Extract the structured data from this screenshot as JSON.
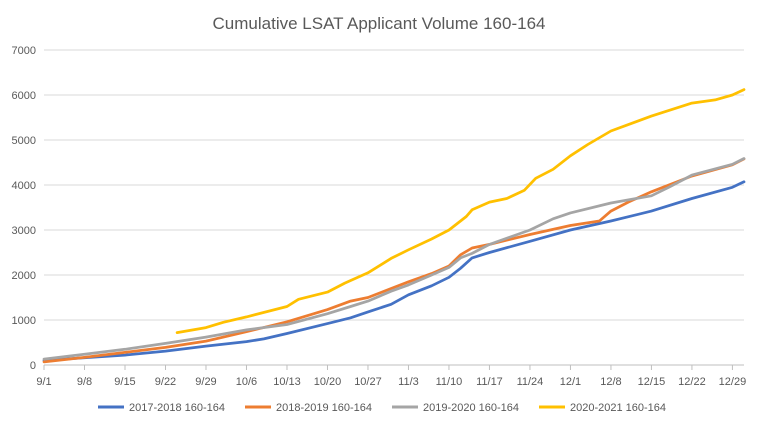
{
  "chart_data": {
    "type": "line",
    "title": "Cumulative LSAT Applicant Volume 160-164",
    "xlabel": "",
    "ylabel": "",
    "x_unit": "days since 9/1",
    "xlim": [
      0,
      121
    ],
    "ylim": [
      0,
      7000
    ],
    "yticks": [
      0,
      1000,
      2000,
      3000,
      4000,
      5000,
      6000,
      7000
    ],
    "ytick_labels": [
      "0",
      "1000",
      "2000",
      "3000",
      "4000",
      "5000",
      "6000",
      "7000"
    ],
    "xticks": [
      0,
      7,
      14,
      21,
      28,
      35,
      42,
      49,
      56,
      63,
      70,
      77,
      84,
      91,
      98,
      105,
      112,
      119
    ],
    "xtick_labels": [
      "9/1",
      "9/8",
      "9/15",
      "9/22",
      "9/29",
      "10/6",
      "10/13",
      "10/20",
      "10/27",
      "11/3",
      "11/10",
      "11/17",
      "11/24",
      "12/1",
      "12/8",
      "12/15",
      "12/22",
      "12/29"
    ],
    "grid": true,
    "legend_position": "bottom",
    "series": [
      {
        "name": "2017-2018 160-164",
        "color": "#4472C4",
        "points": [
          [
            0,
            100
          ],
          [
            7,
            160
          ],
          [
            14,
            220
          ],
          [
            21,
            310
          ],
          [
            28,
            420
          ],
          [
            35,
            520
          ],
          [
            38,
            580
          ],
          [
            42,
            700
          ],
          [
            49,
            920
          ],
          [
            53,
            1050
          ],
          [
            56,
            1180
          ],
          [
            60,
            1350
          ],
          [
            63,
            1560
          ],
          [
            67,
            1760
          ],
          [
            70,
            1950
          ],
          [
            72,
            2150
          ],
          [
            74,
            2380
          ],
          [
            77,
            2500
          ],
          [
            84,
            2750
          ],
          [
            91,
            3000
          ],
          [
            98,
            3200
          ],
          [
            105,
            3420
          ],
          [
            112,
            3700
          ],
          [
            119,
            3950
          ],
          [
            121,
            4070
          ]
        ]
      },
      {
        "name": "2018-2019 160-164",
        "color": "#ED7D31",
        "points": [
          [
            0,
            70
          ],
          [
            7,
            170
          ],
          [
            14,
            280
          ],
          [
            21,
            390
          ],
          [
            28,
            530
          ],
          [
            35,
            740
          ],
          [
            42,
            960
          ],
          [
            49,
            1230
          ],
          [
            53,
            1420
          ],
          [
            56,
            1500
          ],
          [
            60,
            1700
          ],
          [
            63,
            1850
          ],
          [
            67,
            2030
          ],
          [
            70,
            2200
          ],
          [
            72,
            2450
          ],
          [
            74,
            2600
          ],
          [
            77,
            2680
          ],
          [
            84,
            2900
          ],
          [
            91,
            3100
          ],
          [
            96,
            3200
          ],
          [
            98,
            3420
          ],
          [
            101,
            3620
          ],
          [
            105,
            3850
          ],
          [
            112,
            4200
          ],
          [
            119,
            4450
          ],
          [
            121,
            4580
          ]
        ]
      },
      {
        "name": "2019-2020 160-164",
        "color": "#A5A5A5",
        "points": [
          [
            0,
            130
          ],
          [
            7,
            240
          ],
          [
            14,
            350
          ],
          [
            21,
            480
          ],
          [
            28,
            620
          ],
          [
            35,
            780
          ],
          [
            42,
            900
          ],
          [
            49,
            1140
          ],
          [
            53,
            1300
          ],
          [
            56,
            1420
          ],
          [
            60,
            1640
          ],
          [
            63,
            1780
          ],
          [
            67,
            2000
          ],
          [
            70,
            2170
          ],
          [
            72,
            2380
          ],
          [
            74,
            2480
          ],
          [
            77,
            2680
          ],
          [
            84,
            3000
          ],
          [
            88,
            3250
          ],
          [
            91,
            3380
          ],
          [
            98,
            3600
          ],
          [
            105,
            3760
          ],
          [
            108,
            3950
          ],
          [
            112,
            4220
          ],
          [
            119,
            4460
          ],
          [
            121,
            4590
          ]
        ]
      },
      {
        "name": "2020-2021 160-164",
        "color": "#FFC000",
        "points": [
          [
            23,
            720
          ],
          [
            28,
            830
          ],
          [
            31,
            950
          ],
          [
            35,
            1070
          ],
          [
            42,
            1300
          ],
          [
            44,
            1460
          ],
          [
            49,
            1620
          ],
          [
            52,
            1820
          ],
          [
            56,
            2050
          ],
          [
            60,
            2370
          ],
          [
            63,
            2560
          ],
          [
            67,
            2800
          ],
          [
            70,
            3000
          ],
          [
            73,
            3300
          ],
          [
            74,
            3450
          ],
          [
            77,
            3620
          ],
          [
            80,
            3700
          ],
          [
            83,
            3880
          ],
          [
            85,
            4150
          ],
          [
            88,
            4350
          ],
          [
            91,
            4650
          ],
          [
            94,
            4900
          ],
          [
            98,
            5200
          ],
          [
            105,
            5530
          ],
          [
            112,
            5820
          ],
          [
            116,
            5890
          ],
          [
            119,
            6000
          ],
          [
            121,
            6120
          ]
        ]
      }
    ]
  }
}
